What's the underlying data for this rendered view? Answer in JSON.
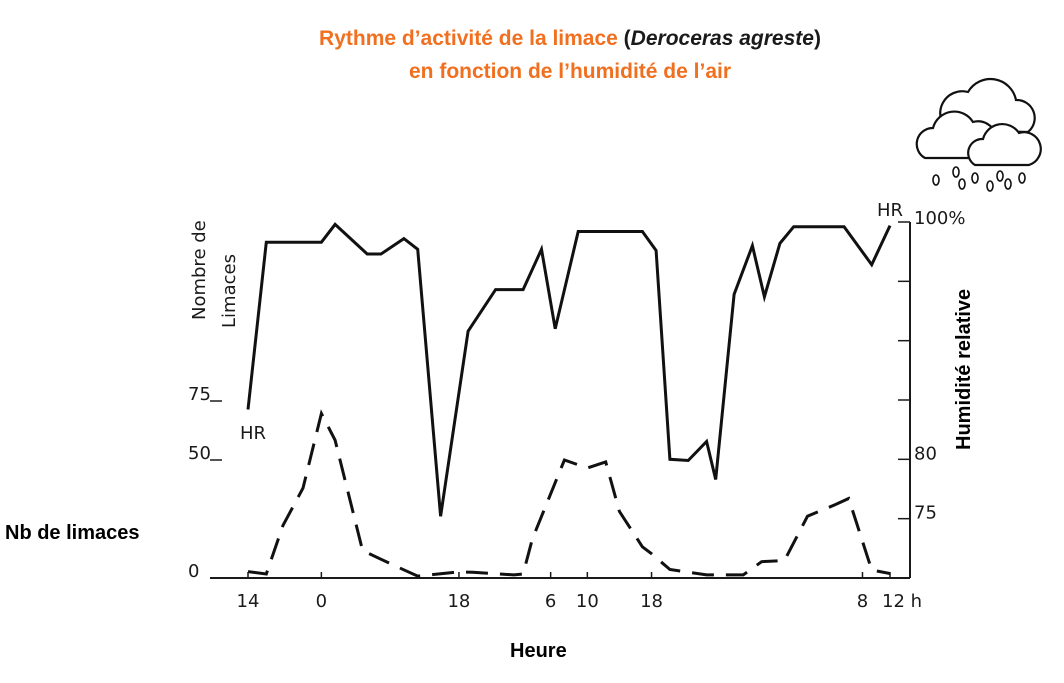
{
  "title": {
    "line1_prefix": "Rythme d’activité de la limace ",
    "paren_open": "(",
    "species": "Deroceras agreste",
    "paren_close": ")",
    "line2": "en fonction de l’humidité de l’air"
  },
  "left_label": "Nb de limaces",
  "right_label": "Humidité relative",
  "x_label": "Heure",
  "icon": "rain-cloud-icon",
  "chart_data": {
    "type": "line",
    "title": "Rythme d’activité de la limace (Deroceras agreste) en fonction de l’humidité de l’air",
    "xlabel": "Heure",
    "x_ticks": [
      "14",
      "0",
      "18",
      "6",
      "10",
      "18",
      "8",
      "12 h"
    ],
    "y_left": {
      "label": "Nombre de Limaces",
      "ticks": [
        "0",
        "50",
        "75"
      ],
      "lim": [
        0,
        75
      ]
    },
    "y_right": {
      "label": "Humidité relative",
      "ticks": [
        "75",
        "80",
        "100%"
      ],
      "lim": [
        70,
        100
      ]
    },
    "series": [
      {
        "name": "HR",
        "axis": "right",
        "style": "solid",
        "x": [
          14,
          16,
          22,
          23.5,
          27,
          28.5,
          31,
          32.5,
          35,
          38,
          41,
          44,
          46,
          47.5,
          50,
          52,
          57,
          58.5,
          60,
          62,
          64,
          65,
          67,
          69,
          70.3,
          72,
          73.5,
          79,
          82,
          84
        ],
        "y": [
          84.2,
          98.3,
          98.3,
          99.8,
          97.3,
          97.3,
          98.6,
          97.7,
          75.2,
          90.8,
          94.3,
          94.3,
          97.7,
          91.0,
          99.2,
          99.2,
          99.2,
          97.6,
          80.0,
          79.9,
          81.5,
          78.3,
          93.9,
          98.0,
          93.7,
          98.2,
          99.6,
          99.6,
          96.4,
          99.7
        ]
      },
      {
        "name": "",
        "axis": "left",
        "style": "dashed",
        "x": [
          14,
          16,
          17.8,
          20,
          22,
          23.5,
          26.5,
          30,
          32.5,
          37,
          38.5,
          43,
          44,
          45,
          48.5,
          51,
          53,
          54.5,
          57,
          58,
          60,
          64,
          68,
          70,
          72.5,
          75,
          78,
          79.5,
          82,
          84
        ],
        "y": [
          2.7,
          1.7,
          22.2,
          38.1,
          69.7,
          58.4,
          11.6,
          5.2,
          0.8,
          2.6,
          2.4,
          1.3,
          1.7,
          16.5,
          50.0,
          46.6,
          49.2,
          28.2,
          13.2,
          10.3,
          3.6,
          1.3,
          1.3,
          6.9,
          7.4,
          26.2,
          31.0,
          33.7,
          3.4,
          1.9
        ]
      }
    ],
    "legend": "none",
    "grid": false
  }
}
